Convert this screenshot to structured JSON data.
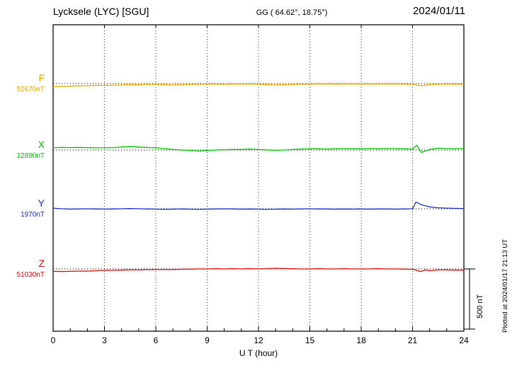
{
  "header": {
    "station": "Lycksele (LYC)  [SGU]",
    "coords": "GG ( 64.62°,  18.75°)",
    "date": "2024/01/11"
  },
  "xaxis": {
    "label": "U T (hour)"
  },
  "scale_bar": {
    "label": "500 nT",
    "nT": 500
  },
  "footer_note": "Plotted at 2024/01/17 21:13 UT",
  "chart_data": {
    "type": "line",
    "title": "Lycksele (LYC) [SGU] magnetogram 2024/01/11",
    "xlabel": "U T (hour)",
    "x_range": [
      0,
      24
    ],
    "x_ticks": [
      0,
      3,
      6,
      9,
      12,
      15,
      18,
      21,
      24
    ],
    "grid": "vertical-dotted-every-3h",
    "scale_bar_nT": 500,
    "series": [
      {
        "name": "F",
        "baseline_label": "52670nT",
        "baseline_nT": 52670,
        "color": "#f0a500",
        "x": [
          0,
          0.5,
          1,
          1.5,
          2,
          2.5,
          3,
          3.5,
          4,
          4.5,
          5,
          5.5,
          6,
          6.5,
          7,
          7.5,
          8,
          8.5,
          9,
          9.5,
          10,
          10.5,
          11,
          11.5,
          12,
          12.5,
          13,
          13.5,
          14,
          14.5,
          15,
          15.5,
          16,
          16.5,
          17,
          17.5,
          18,
          18.5,
          19,
          19.5,
          20,
          20.5,
          21,
          21.5,
          22,
          22.5,
          23,
          23.5,
          24
        ],
        "offset_nT": [
          -25,
          -24,
          -22,
          -20,
          -18,
          -16,
          -15,
          -14,
          -12,
          -10,
          -10,
          -8,
          -8,
          -10,
          -12,
          -10,
          -8,
          -6,
          -5,
          -5,
          -6,
          -5,
          -4,
          -5,
          -6,
          -10,
          -12,
          -10,
          -8,
          -6,
          -5,
          -4,
          -4,
          -5,
          -4,
          -4,
          -4,
          -5,
          -4,
          -4,
          -4,
          -5,
          -6,
          -18,
          -10,
          -6,
          -5,
          -5,
          -5
        ]
      },
      {
        "name": "X",
        "baseline_label": "12890nT",
        "baseline_nT": 12890,
        "color": "#00c800",
        "x": [
          0,
          0.5,
          1,
          1.5,
          2,
          2.5,
          3,
          3.5,
          4,
          4.5,
          5,
          5.5,
          6,
          6.5,
          7,
          7.5,
          8,
          8.5,
          9,
          9.5,
          10,
          10.5,
          11,
          11.5,
          12,
          12.5,
          13,
          13.5,
          14,
          14.5,
          15,
          15.5,
          16,
          16.5,
          17,
          17.5,
          18,
          18.5,
          19,
          19.5,
          20,
          20.5,
          21,
          21.25,
          21.5,
          22,
          22.5,
          23,
          23.5,
          24
        ],
        "offset_nT": [
          20,
          22,
          20,
          22,
          20,
          18,
          18,
          20,
          25,
          28,
          25,
          22,
          18,
          12,
          5,
          0,
          -5,
          -8,
          -5,
          0,
          2,
          5,
          5,
          8,
          5,
          0,
          -3,
          0,
          5,
          8,
          10,
          10,
          8,
          10,
          12,
          10,
          10,
          12,
          10,
          12,
          12,
          10,
          8,
          40,
          -20,
          5,
          15,
          12,
          12,
          12
        ]
      },
      {
        "name": "Y",
        "baseline_label": "1970nT",
        "baseline_nT": 1970,
        "color": "#2233cc",
        "x": [
          0,
          0.5,
          1,
          1.5,
          2,
          2.5,
          3,
          3.5,
          4,
          4.5,
          5,
          5.5,
          6,
          6.5,
          7,
          7.5,
          8,
          8.5,
          9,
          9.5,
          10,
          10.5,
          11,
          11.5,
          12,
          12.5,
          13,
          13.5,
          14,
          14.5,
          15,
          15.5,
          16,
          16.5,
          17,
          17.5,
          18,
          18.5,
          19,
          19.5,
          20,
          20.5,
          21,
          21.2,
          21.5,
          22,
          22.5,
          23,
          23.5,
          24
        ],
        "offset_nT": [
          5,
          0,
          -3,
          -2,
          0,
          -2,
          -3,
          -2,
          0,
          2,
          0,
          -2,
          -3,
          -5,
          -3,
          -2,
          -3,
          -5,
          -3,
          -2,
          0,
          -2,
          -3,
          -2,
          -3,
          -5,
          -3,
          -2,
          -3,
          -2,
          0,
          -2,
          -2,
          -3,
          -2,
          -3,
          -2,
          -3,
          -2,
          -2,
          -3,
          -2,
          0,
          55,
          35,
          15,
          8,
          5,
          3,
          2
        ]
      },
      {
        "name": "Z",
        "baseline_label": "51030nT",
        "baseline_nT": 51030,
        "color": "#dd1111",
        "x": [
          0,
          0.5,
          1,
          1.5,
          2,
          2.5,
          3,
          3.5,
          4,
          4.5,
          5,
          5.5,
          6,
          6.5,
          7,
          7.5,
          8,
          8.5,
          9,
          9.5,
          10,
          10.5,
          11,
          11.5,
          12,
          12.5,
          13,
          13.5,
          14,
          14.5,
          15,
          15.5,
          16,
          16.5,
          17,
          17.5,
          18,
          18.5,
          19,
          19.5,
          20,
          20.5,
          21,
          21.5,
          21.75,
          22,
          22.5,
          23,
          23.5,
          24
        ],
        "offset_nT": [
          -20,
          -22,
          -20,
          -18,
          -18,
          -15,
          -12,
          -12,
          -10,
          -8,
          -8,
          -6,
          -6,
          -5,
          -5,
          -3,
          -2,
          0,
          0,
          2,
          0,
          2,
          0,
          2,
          0,
          3,
          5,
          3,
          2,
          0,
          0,
          2,
          0,
          0,
          2,
          0,
          0,
          0,
          2,
          0,
          0,
          -2,
          -3,
          -22,
          -8,
          -15,
          -8,
          -8,
          -10,
          -10
        ]
      }
    ]
  }
}
